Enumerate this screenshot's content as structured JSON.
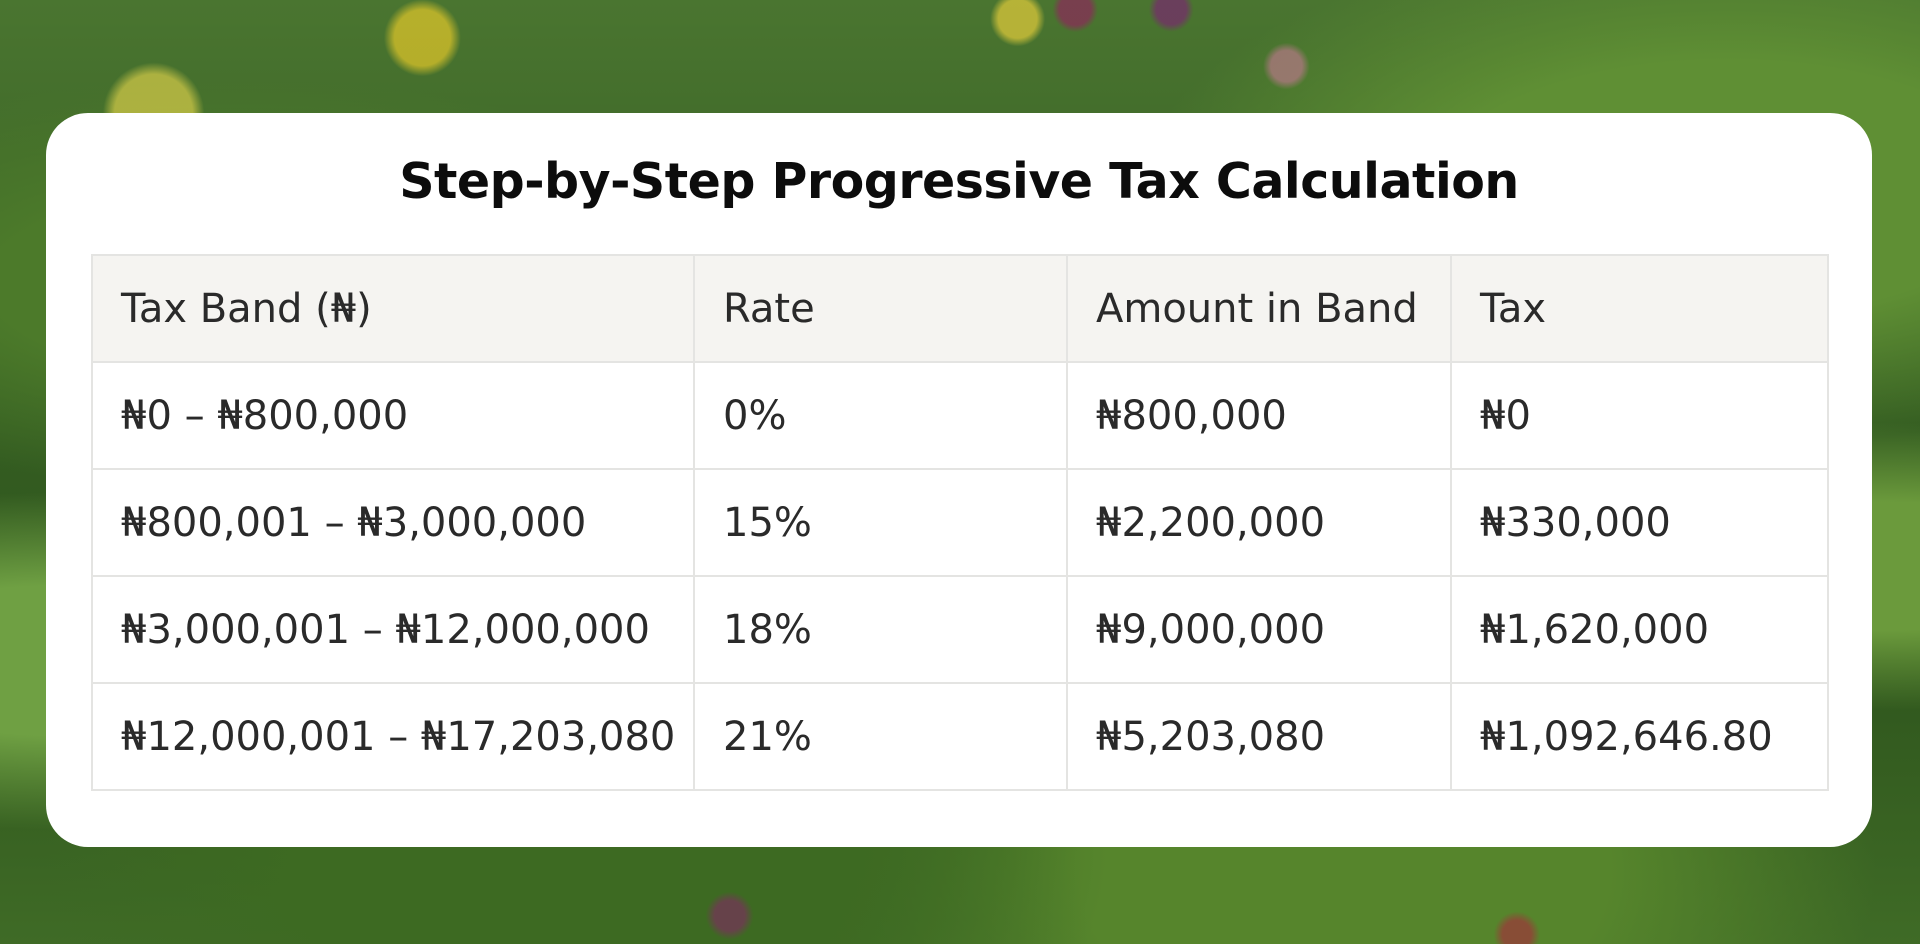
{
  "title": "Step-by-Step Progressive Tax Calculation",
  "table": {
    "headers": [
      "Tax Band (₦)",
      "Rate",
      "Amount in Band",
      "Tax"
    ],
    "rows": [
      [
        "₦0 – ₦800,000",
        "0%",
        "₦800,000",
        "₦0"
      ],
      [
        "₦800,001 – ₦3,000,000",
        "15%",
        "₦2,200,000",
        "₦330,000"
      ],
      [
        "₦3,000,001 – ₦12,000,000",
        "18%",
        "₦9,000,000",
        "₦1,620,000"
      ],
      [
        "₦12,000,001 – ₦17,203,080",
        "21%",
        "₦5,203,080",
        "₦1,092,646.80"
      ]
    ]
  },
  "colors": {
    "card_background": "#ffffff",
    "header_background": "#f5f4f1",
    "border": "#e4e4e2",
    "text": "#2a2a2a",
    "title_text": "#0c0c0c"
  }
}
